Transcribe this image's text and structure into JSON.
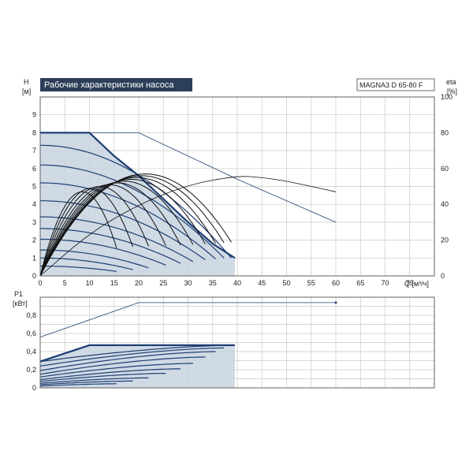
{
  "chart_title": "Рабочие характеристики насоса",
  "model": "MAGNA3 D 65-80 F",
  "colors": {
    "curve": "#1f3f73",
    "fill": "#c7d3e0",
    "grid": "#c8c8c8",
    "title_bg": "#2c3e58",
    "eta": "#111111"
  },
  "chart_data": [
    {
      "type": "line",
      "name": "head",
      "ylabel_top": "H",
      "ylabel_unit": "[м]",
      "y2label_top": "eta",
      "y2label_unit": "[%]",
      "xlabel": "Q [м³/ч]",
      "xlim": [
        0,
        80
      ],
      "ylim": [
        0,
        10
      ],
      "y2lim": [
        0,
        100
      ],
      "x_ticks": [
        "0",
        "5",
        "10",
        "15",
        "20",
        "25",
        "30",
        "35",
        "40",
        "45",
        "50",
        "55",
        "60",
        "65",
        "70",
        "75"
      ],
      "y_ticks": [
        "0",
        "1",
        "2",
        "3",
        "4",
        "5",
        "6",
        "7",
        "8",
        "9"
      ],
      "y2_ticks": [
        "0",
        "20",
        "40",
        "60",
        "80",
        "100"
      ],
      "max_curve": [
        [
          0,
          8
        ],
        [
          10,
          8
        ],
        [
          15,
          6.7
        ],
        [
          20,
          5.6
        ],
        [
          25,
          4.3
        ],
        [
          30,
          3.0
        ],
        [
          35,
          1.8
        ],
        [
          39.5,
          1.0
        ]
      ],
      "max_curve_extension": [
        [
          10,
          8
        ],
        [
          20,
          8
        ],
        [
          40,
          5.4
        ],
        [
          60,
          3.0
        ]
      ],
      "speed_curves": [
        {
          "h0": 7.3,
          "qmax": 38.8,
          "hend": 1.0
        },
        {
          "h0": 6.2,
          "qmax": 37.3,
          "hend": 1.0
        },
        {
          "h0": 5.2,
          "qmax": 35.6,
          "hend": 0.95
        },
        {
          "h0": 4.2,
          "qmax": 33.5,
          "hend": 0.9
        },
        {
          "h0": 3.3,
          "qmax": 31.0,
          "hend": 0.8
        },
        {
          "h0": 2.65,
          "qmax": 28.5,
          "hend": 0.7
        },
        {
          "h0": 2.05,
          "qmax": 25.5,
          "hend": 0.6
        },
        {
          "h0": 1.45,
          "qmax": 22.0,
          "hend": 0.45
        },
        {
          "h0": 1.0,
          "qmax": 18.8,
          "hend": 0.35
        },
        {
          "h0": 0.55,
          "qmax": 15.5,
          "hend": 0.25
        }
      ],
      "eta_curves_max_pct": [
        57,
        56,
        55,
        54,
        53,
        52,
        51,
        50,
        49,
        47
      ],
      "eta_extension": [
        [
          0,
          0
        ],
        [
          10,
          24
        ],
        [
          20,
          40
        ],
        [
          30,
          51
        ],
        [
          40,
          56
        ],
        [
          45,
          55
        ],
        [
          50,
          53
        ],
        [
          55,
          50
        ],
        [
          60,
          47
        ]
      ]
    },
    {
      "type": "line",
      "name": "power",
      "ylabel_top": "P1",
      "ylabel_unit": "[кВт]",
      "xlim": [
        0,
        80
      ],
      "ylim": [
        0,
        1.0
      ],
      "y_ticks": [
        "0",
        "0,2",
        "0,4",
        "0,6",
        "0,8"
      ],
      "max_curve": [
        [
          0,
          0.29
        ],
        [
          10,
          0.47
        ],
        [
          15,
          0.47
        ],
        [
          20,
          0.47
        ],
        [
          25,
          0.47
        ],
        [
          30,
          0.47
        ],
        [
          35,
          0.47
        ],
        [
          39.5,
          0.47
        ]
      ],
      "max_curve_extension": [
        [
          0,
          0.56
        ],
        [
          20,
          0.94
        ],
        [
          60,
          0.94
        ]
      ],
      "speed_curves": [
        {
          "p0": 0.29,
          "q1": 10.0,
          "p1": 0.47,
          "qmax": 39.5,
          "pend": 0.47
        },
        {
          "p0": 0.24,
          "q1": 15.0,
          "p1": 0.42,
          "qmax": 37.3,
          "pend": 0.44
        },
        {
          "p0": 0.19,
          "q1": 20.0,
          "p1": 0.36,
          "qmax": 35.6,
          "pend": 0.4
        },
        {
          "p0": 0.15,
          "q1": 20.0,
          "p1": 0.29,
          "qmax": 33.5,
          "pend": 0.34
        },
        {
          "p0": 0.12,
          "q1": 20.0,
          "p1": 0.23,
          "qmax": 31.0,
          "pend": 0.27
        },
        {
          "p0": 0.09,
          "q1": 20.0,
          "p1": 0.17,
          "qmax": 28.5,
          "pend": 0.21
        },
        {
          "p0": 0.07,
          "q1": 15.0,
          "p1": 0.12,
          "qmax": 25.5,
          "pend": 0.16
        },
        {
          "p0": 0.05,
          "q1": 15.0,
          "p1": 0.09,
          "qmax": 22.0,
          "pend": 0.11
        },
        {
          "p0": 0.035,
          "q1": 10.0,
          "p1": 0.055,
          "qmax": 18.8,
          "pend": 0.075
        },
        {
          "p0": 0.02,
          "q1": 10.0,
          "p1": 0.035,
          "qmax": 15.5,
          "pend": 0.045
        }
      ]
    }
  ]
}
